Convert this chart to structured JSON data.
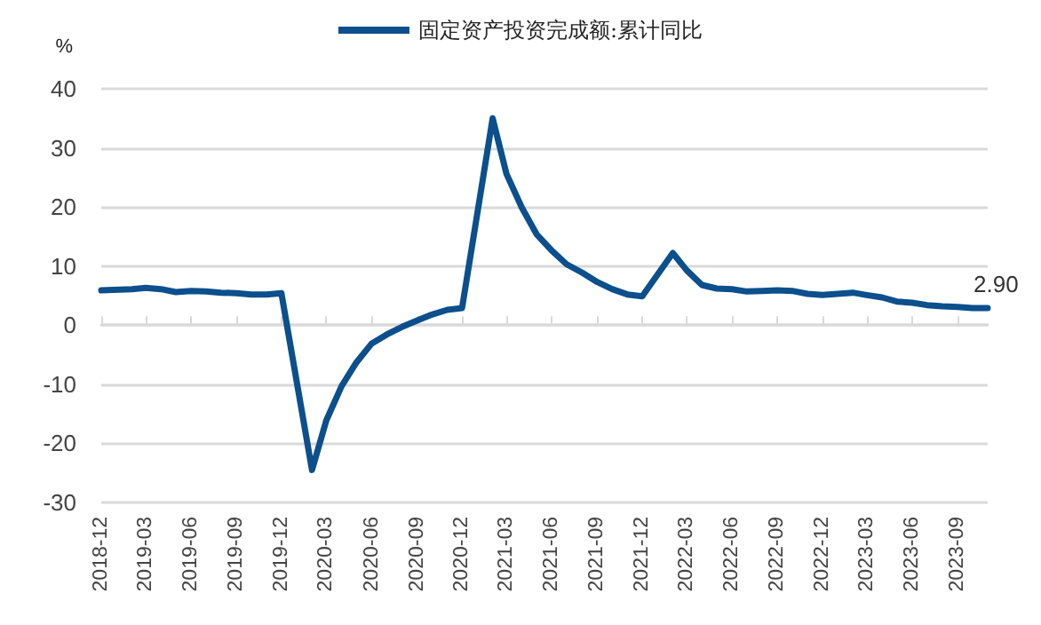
{
  "chart_data": {
    "type": "line",
    "ylabel": "%",
    "legend": "top",
    "grid": "y",
    "marker": "none",
    "line_style": "solid",
    "x": [
      "2018-12",
      "2019-02",
      "2019-03",
      "2019-04",
      "2019-05",
      "2019-06",
      "2019-07",
      "2019-08",
      "2019-09",
      "2019-10",
      "2019-11",
      "2019-12",
      "2020-02",
      "2020-03",
      "2020-04",
      "2020-05",
      "2020-06",
      "2020-07",
      "2020-08",
      "2020-09",
      "2020-10",
      "2020-11",
      "2020-12",
      "2021-02",
      "2021-03",
      "2021-04",
      "2021-05",
      "2021-06",
      "2021-07",
      "2021-08",
      "2021-09",
      "2021-10",
      "2021-11",
      "2021-12",
      "2022-02",
      "2022-03",
      "2022-04",
      "2022-05",
      "2022-06",
      "2022-07",
      "2022-08",
      "2022-09",
      "2022-10",
      "2022-11",
      "2022-12",
      "2023-02",
      "2023-03",
      "2023-04",
      "2023-05",
      "2023-06",
      "2023-07",
      "2023-08",
      "2023-09",
      "2023-10",
      "2023-11"
    ],
    "series": [
      {
        "name": "固定资产投资完成额:累计同比",
        "color": "#0b4f8c",
        "values": [
          5.9,
          6.1,
          6.3,
          6.1,
          5.6,
          5.8,
          5.7,
          5.5,
          5.4,
          5.2,
          5.2,
          5.4,
          -24.5,
          -16.1,
          -10.3,
          -6.3,
          -3.1,
          -1.6,
          -0.3,
          0.8,
          1.8,
          2.6,
          2.9,
          35.0,
          25.6,
          19.9,
          15.4,
          12.6,
          10.3,
          8.9,
          7.3,
          6.1,
          5.2,
          4.9,
          12.2,
          9.3,
          6.8,
          6.2,
          6.1,
          5.7,
          5.8,
          5.9,
          5.8,
          5.3,
          5.1,
          5.5,
          5.1,
          4.7,
          4.0,
          3.8,
          3.4,
          3.2,
          3.1,
          2.9,
          2.9
        ]
      }
    ],
    "xlim": [
      "2018-12",
      "2023-11"
    ],
    "xticks": [
      "2018-12",
      "2019-03",
      "2019-06",
      "2019-09",
      "2019-12",
      "2020-03",
      "2020-06",
      "2020-09",
      "2020-12",
      "2021-03",
      "2021-06",
      "2021-09",
      "2021-12",
      "2022-03",
      "2022-06",
      "2022-09",
      "2022-12",
      "2023-03",
      "2023-06",
      "2023-09"
    ],
    "ylim": [
      -30,
      40
    ],
    "yticks": [
      -30,
      -20,
      -10,
      0,
      10,
      20,
      30,
      40
    ],
    "annotations": [
      {
        "text": "2.90",
        "x": "2023-11",
        "y": 2.9
      }
    ]
  }
}
